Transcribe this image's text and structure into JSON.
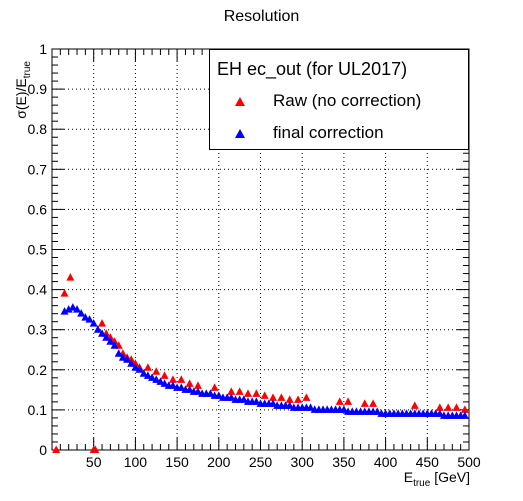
{
  "chart_data": {
    "type": "scatter",
    "title": "Resolution",
    "ylabel_main": "σ(E)/E",
    "ylabel_sub": "true",
    "xlabel_main": "E",
    "xlabel_sub": "true",
    "xlabel_unit": "[GeV]",
    "xlim": [
      0,
      500
    ],
    "ylim": [
      0,
      1
    ],
    "xticks": [
      50,
      100,
      150,
      200,
      250,
      300,
      350,
      400,
      450,
      500
    ],
    "yticks": [
      0,
      0.1,
      0.2,
      0.3,
      0.4,
      0.5,
      0.6,
      0.7,
      0.8,
      0.9,
      1
    ],
    "grid": true,
    "legend_position": "top-right",
    "legend_title": "EH ec_out (for UL2017)",
    "series": [
      {
        "name": "Raw (no correction)",
        "color": "#ff0000",
        "marker": "triangle",
        "points": [
          [
            5,
            0.0
          ],
          [
            15,
            0.39
          ],
          [
            22,
            0.43
          ],
          [
            50,
            0.0
          ],
          [
            52,
            0.0
          ],
          [
            60,
            0.315
          ],
          [
            65,
            0.29
          ],
          [
            70,
            0.28
          ],
          [
            75,
            0.27
          ],
          [
            80,
            0.26
          ],
          [
            85,
            0.24
          ],
          [
            90,
            0.23
          ],
          [
            95,
            0.225
          ],
          [
            100,
            0.215
          ],
          [
            105,
            0.205
          ],
          [
            115,
            0.205
          ],
          [
            125,
            0.195
          ],
          [
            135,
            0.185
          ],
          [
            145,
            0.175
          ],
          [
            155,
            0.175
          ],
          [
            165,
            0.165
          ],
          [
            175,
            0.16
          ],
          [
            195,
            0.155
          ],
          [
            215,
            0.145
          ],
          [
            225,
            0.145
          ],
          [
            235,
            0.14
          ],
          [
            245,
            0.14
          ],
          [
            255,
            0.135
          ],
          [
            265,
            0.13
          ],
          [
            275,
            0.13
          ],
          [
            285,
            0.125
          ],
          [
            295,
            0.125
          ],
          [
            305,
            0.13
          ],
          [
            345,
            0.12
          ],
          [
            355,
            0.12
          ],
          [
            375,
            0.115
          ],
          [
            385,
            0.115
          ],
          [
            435,
            0.11
          ],
          [
            465,
            0.105
          ],
          [
            475,
            0.105
          ],
          [
            485,
            0.105
          ],
          [
            495,
            0.1
          ]
        ]
      },
      {
        "name": "final correction",
        "color": "#0000ff",
        "marker": "triangle",
        "points": [
          [
            15,
            0.345
          ],
          [
            20,
            0.35
          ],
          [
            25,
            0.355
          ],
          [
            30,
            0.35
          ],
          [
            35,
            0.34
          ],
          [
            40,
            0.33
          ],
          [
            45,
            0.325
          ],
          [
            50,
            0.315
          ],
          [
            55,
            0.3
          ],
          [
            60,
            0.29
          ],
          [
            65,
            0.28
          ],
          [
            70,
            0.27
          ],
          [
            75,
            0.26
          ],
          [
            80,
            0.24
          ],
          [
            85,
            0.23
          ],
          [
            90,
            0.225
          ],
          [
            95,
            0.215
          ],
          [
            100,
            0.205
          ],
          [
            105,
            0.2
          ],
          [
            110,
            0.19
          ],
          [
            115,
            0.185
          ],
          [
            120,
            0.18
          ],
          [
            125,
            0.175
          ],
          [
            130,
            0.17
          ],
          [
            135,
            0.165
          ],
          [
            140,
            0.16
          ],
          [
            145,
            0.16
          ],
          [
            150,
            0.155
          ],
          [
            155,
            0.155
          ],
          [
            160,
            0.15
          ],
          [
            165,
            0.15
          ],
          [
            170,
            0.145
          ],
          [
            175,
            0.145
          ],
          [
            180,
            0.14
          ],
          [
            185,
            0.14
          ],
          [
            190,
            0.14
          ],
          [
            195,
            0.135
          ],
          [
            200,
            0.135
          ],
          [
            205,
            0.13
          ],
          [
            210,
            0.13
          ],
          [
            215,
            0.13
          ],
          [
            220,
            0.125
          ],
          [
            225,
            0.125
          ],
          [
            230,
            0.125
          ],
          [
            235,
            0.12
          ],
          [
            240,
            0.12
          ],
          [
            245,
            0.12
          ],
          [
            250,
            0.115
          ],
          [
            255,
            0.115
          ],
          [
            260,
            0.115
          ],
          [
            265,
            0.115
          ],
          [
            270,
            0.11
          ],
          [
            275,
            0.11
          ],
          [
            280,
            0.11
          ],
          [
            285,
            0.11
          ],
          [
            290,
            0.105
          ],
          [
            295,
            0.105
          ],
          [
            300,
            0.105
          ],
          [
            305,
            0.105
          ],
          [
            310,
            0.105
          ],
          [
            315,
            0.1
          ],
          [
            320,
            0.1
          ],
          [
            325,
            0.1
          ],
          [
            330,
            0.1
          ],
          [
            335,
            0.1
          ],
          [
            340,
            0.1
          ],
          [
            345,
            0.1
          ],
          [
            350,
            0.1
          ],
          [
            355,
            0.095
          ],
          [
            360,
            0.095
          ],
          [
            365,
            0.095
          ],
          [
            370,
            0.095
          ],
          [
            375,
            0.095
          ],
          [
            380,
            0.095
          ],
          [
            385,
            0.095
          ],
          [
            390,
            0.095
          ],
          [
            395,
            0.09
          ],
          [
            400,
            0.09
          ],
          [
            405,
            0.09
          ],
          [
            410,
            0.09
          ],
          [
            415,
            0.09
          ],
          [
            420,
            0.09
          ],
          [
            425,
            0.09
          ],
          [
            430,
            0.09
          ],
          [
            435,
            0.09
          ],
          [
            440,
            0.09
          ],
          [
            445,
            0.09
          ],
          [
            450,
            0.09
          ],
          [
            455,
            0.09
          ],
          [
            460,
            0.09
          ],
          [
            465,
            0.09
          ],
          [
            470,
            0.085
          ],
          [
            475,
            0.085
          ],
          [
            480,
            0.085
          ],
          [
            485,
            0.085
          ],
          [
            490,
            0.085
          ],
          [
            495,
            0.085
          ]
        ]
      }
    ]
  }
}
